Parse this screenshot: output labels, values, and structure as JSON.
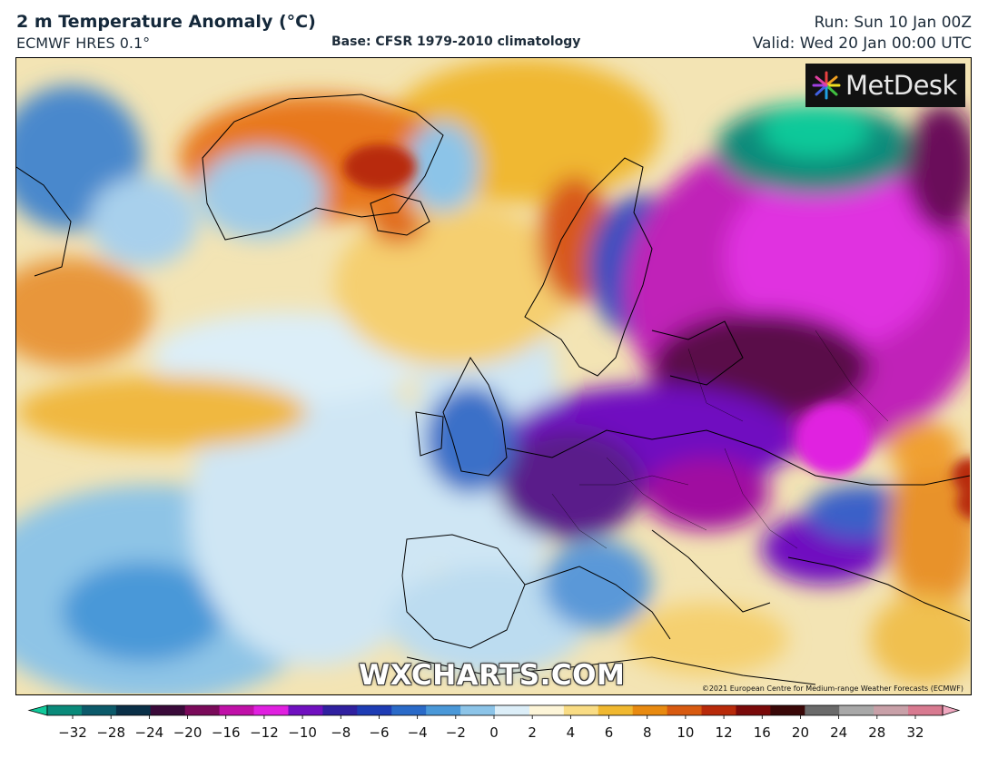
{
  "header": {
    "title": "2 m Temperature Anomaly (°C)",
    "model": "ECMWF HRES 0.1°",
    "base": "Base: CFSR 1979-2010 climatology",
    "run": "Run: Sun 10 Jan 00Z",
    "valid": "Valid: Wed 20 Jan 00:00 UTC"
  },
  "map": {
    "logo_text": "MetDesk",
    "watermark": "WXCHARTS.COM",
    "copyright": "©2021 European Centre for Medium-range Weather Forecasts (ECMWF)"
  },
  "colorbar": {
    "ticks": [
      "-32",
      "-28",
      "-24",
      "-20",
      "-16",
      "-12",
      "-10",
      "-8",
      "-6",
      "-4",
      "-2",
      "0",
      "2",
      "4",
      "6",
      "8",
      "10",
      "12",
      "16",
      "20",
      "24",
      "28",
      "32"
    ],
    "colors": [
      "#10c99a",
      "#0a8a7a",
      "#0c5a6a",
      "#0a3048",
      "#3a0a3a",
      "#7a0a5a",
      "#c010a8",
      "#e020e0",
      "#7010c0",
      "#3020a0",
      "#1e3cb4",
      "#2a6ac8",
      "#4a98d8",
      "#8cc4e8",
      "#dceef8",
      "#fdf5d8",
      "#f9dc84",
      "#f0b830",
      "#e88a10",
      "#d85a10",
      "#b82a0a",
      "#7a0a0a",
      "#3a0808",
      "#6a6a6a",
      "#a8a8a8",
      "#c8a0a8",
      "#d87a90",
      "#f0a8c0"
    ],
    "colors_note_semantic": "diverging cold-to-warm scale"
  }
}
